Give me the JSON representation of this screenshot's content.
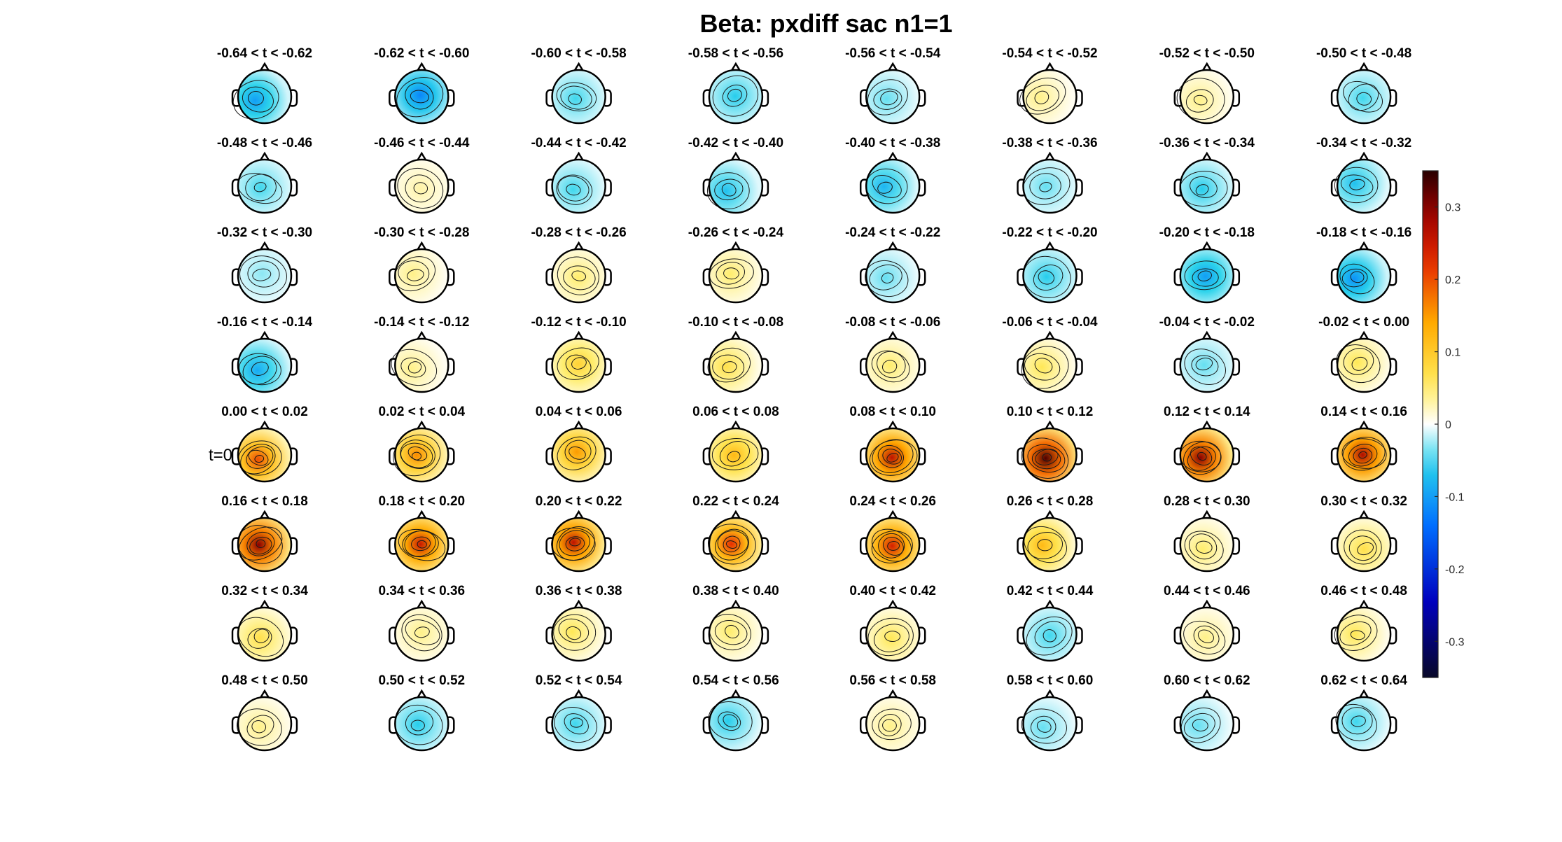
{
  "title": "Beta: pxdiff sac  n1=1",
  "t0_label": "t=0",
  "chart_data": {
    "type": "heatmap",
    "kind": "scalp-topography-grid",
    "title": "Beta: pxdiff sac  n1=1",
    "grid": {
      "rows": 8,
      "cols": 8
    },
    "panel_titles": [
      "-0.64 < t < -0.62",
      "-0.62 < t < -0.60",
      "-0.60 < t < -0.58",
      "-0.58 < t < -0.56",
      "-0.56 < t < -0.54",
      "-0.54 < t < -0.52",
      "-0.52 < t < -0.50",
      "-0.50 < t < -0.48",
      "-0.48 < t < -0.46",
      "-0.46 < t < -0.44",
      "-0.44 < t < -0.42",
      "-0.42 < t < -0.40",
      "-0.40 < t < -0.38",
      "-0.38 < t < -0.36",
      "-0.36 < t < -0.34",
      "-0.34 < t < -0.32",
      "-0.32 < t < -0.30",
      "-0.30 < t < -0.28",
      "-0.28 < t < -0.26",
      "-0.26 < t < -0.24",
      "-0.24 < t < -0.22",
      "-0.22 < t < -0.20",
      "-0.20 < t < -0.18",
      "-0.18 < t < -0.16",
      "-0.16 < t < -0.14",
      "-0.14 < t < -0.12",
      "-0.12 < t < -0.10",
      "-0.10 < t < -0.08",
      "-0.08 < t < -0.06",
      "-0.06 < t < -0.04",
      "-0.04 < t < -0.02",
      "-0.02 < t < 0.00",
      "0.00 < t < 0.02",
      "0.02 < t < 0.04",
      "0.04 < t < 0.06",
      "0.06 < t < 0.08",
      "0.08 < t < 0.10",
      "0.10 < t < 0.12",
      "0.12 < t < 0.14",
      "0.14 < t < 0.16",
      "0.16 < t < 0.18",
      "0.18 < t < 0.20",
      "0.20 < t < 0.22",
      "0.22 < t < 0.24",
      "0.24 < t < 0.26",
      "0.26 < t < 0.28",
      "0.28 < t < 0.30",
      "0.30 < t < 0.32",
      "0.32 < t < 0.34",
      "0.34 < t < 0.36",
      "0.36 < t < 0.38",
      "0.38 < t < 0.40",
      "0.40 < t < 0.42",
      "0.42 < t < 0.44",
      "0.44 < t < 0.46",
      "0.46 < t < 0.48",
      "0.48 < t < 0.50",
      "0.50 < t < 0.52",
      "0.52 < t < 0.54",
      "0.54 < t < 0.56",
      "0.56 < t < 0.58",
      "0.58 < t < 0.60",
      "0.60 < t < 0.62",
      "0.62 < t < 0.64"
    ],
    "panel_peak_values": [
      -0.1,
      -0.12,
      -0.05,
      -0.06,
      -0.04,
      0.04,
      0.04,
      -0.05,
      -0.05,
      0.03,
      -0.05,
      -0.07,
      -0.08,
      -0.04,
      -0.06,
      -0.07,
      -0.03,
      0.04,
      0.05,
      0.05,
      -0.04,
      -0.06,
      -0.1,
      -0.11,
      -0.09,
      0.04,
      0.09,
      0.07,
      0.05,
      0.06,
      -0.04,
      0.06,
      0.2,
      0.16,
      0.15,
      0.12,
      0.26,
      0.33,
      0.3,
      0.27,
      0.3,
      0.25,
      0.26,
      0.22,
      0.24,
      0.12,
      0.05,
      0.07,
      0.07,
      0.04,
      0.06,
      0.05,
      0.06,
      -0.05,
      0.04,
      0.06,
      0.04,
      -0.06,
      -0.05,
      -0.06,
      0.04,
      -0.04,
      -0.04,
      -0.05
    ],
    "clim": [
      -0.35,
      0.35
    ],
    "colorbar": {
      "colormap": "diverging-blue-white-red",
      "ticks": [
        0.3,
        0.2,
        0.1,
        0,
        -0.1,
        -0.2,
        -0.3
      ],
      "tick_labels": [
        "0.3",
        "0.2",
        "0.1",
        "0",
        "-0.1",
        "-0.2",
        "-0.3"
      ],
      "placement": "right"
    },
    "event_marker_row": 4
  }
}
